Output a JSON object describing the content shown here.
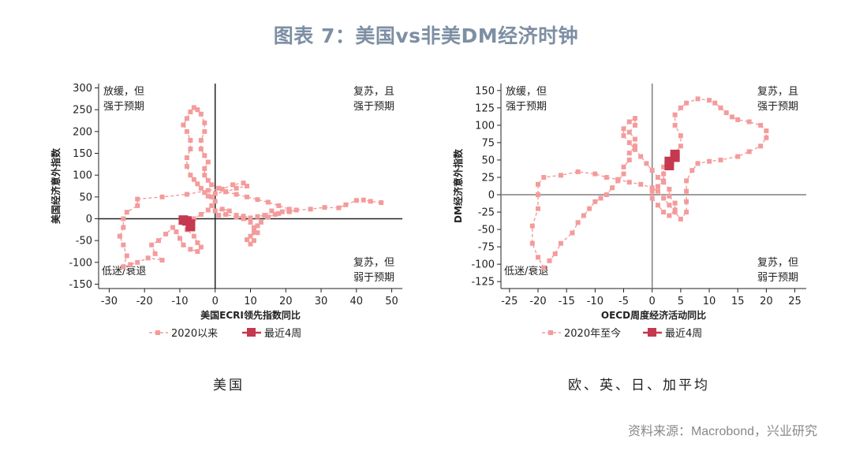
{
  "title": "图表 7：美国vs非美DM经济时钟",
  "source": "资料来源：Macrobond，兴业研究",
  "colors": {
    "history": "#f49b9b",
    "recent": "#c4394f",
    "axis": "#222222",
    "zero": "#7f7f7f",
    "title": "#7d8fa3"
  },
  "chart_data": [
    {
      "type": "scatter",
      "caption": "美国",
      "xlabel": "美国ECRI领先指数同比",
      "ylabel": "美国经济意外指数",
      "xlim": [
        -33,
        53
      ],
      "ylim": [
        -160,
        310
      ],
      "xticks": [
        -30,
        -20,
        -10,
        0,
        10,
        20,
        30,
        40,
        50
      ],
      "yticks": [
        -150,
        -100,
        -50,
        0,
        50,
        100,
        150,
        200,
        250,
        300
      ],
      "grid": false,
      "zero_line_color": "#222222",
      "quadrants": {
        "top_left": [
          "放缓，但",
          "强于预期"
        ],
        "top_right": [
          "复苏，且",
          "强于预期"
        ],
        "bottom_left": [
          "低迷/衰退"
        ],
        "bottom_right": [
          "复苏，但",
          "弱于预期"
        ]
      },
      "legend": {
        "placement": "bottom",
        "history": "2020以来",
        "recent": "最近4周"
      },
      "series": [
        {
          "name": "2020以来",
          "points": [
            [
              47,
              37
            ],
            [
              44,
              40
            ],
            [
              42,
              43
            ],
            [
              40,
              42
            ],
            [
              37,
              32
            ],
            [
              35,
              25
            ],
            [
              31,
              26
            ],
            [
              27,
              22
            ],
            [
              23,
              20
            ],
            [
              21,
              16
            ],
            [
              18,
              12
            ],
            [
              16,
              18
            ],
            [
              14,
              8
            ],
            [
              12,
              5
            ],
            [
              10,
              2
            ],
            [
              8,
              6
            ],
            [
              6,
              4
            ],
            [
              3,
              10
            ],
            [
              1,
              8
            ],
            [
              0,
              18
            ],
            [
              2,
              22
            ],
            [
              4,
              18
            ],
            [
              6,
              8
            ],
            [
              8,
              0
            ],
            [
              10,
              -8
            ],
            [
              11,
              -20
            ],
            [
              12,
              -32
            ],
            [
              10,
              -40
            ],
            [
              11,
              -50
            ],
            [
              10,
              -58
            ],
            [
              9,
              -48
            ],
            [
              11,
              -30
            ],
            [
              12,
              -16
            ],
            [
              13,
              -8
            ],
            [
              15,
              4
            ],
            [
              17,
              10
            ],
            [
              19,
              16
            ],
            [
              21,
              22
            ],
            [
              18,
              30
            ],
            [
              15,
              38
            ],
            [
              12,
              44
            ],
            [
              9,
              50
            ],
            [
              6,
              56
            ],
            [
              3,
              62
            ],
            [
              1,
              70
            ],
            [
              -1,
              78
            ],
            [
              -2,
              88
            ],
            [
              -3,
              100
            ],
            [
              -3,
              115
            ],
            [
              -2,
              130
            ],
            [
              -3,
              145
            ],
            [
              -4,
              160
            ],
            [
              -4,
              180
            ],
            [
              -3,
              200
            ],
            [
              -3,
              220
            ],
            [
              -4,
              240
            ],
            [
              -5,
              250
            ],
            [
              -6,
              255
            ],
            [
              -7,
              245
            ],
            [
              -8,
              230
            ],
            [
              -9,
              215
            ],
            [
              -8,
              200
            ],
            [
              -7,
              180
            ],
            [
              -7,
              160
            ],
            [
              -8,
              140
            ],
            [
              -8,
              120
            ],
            [
              -7,
              100
            ],
            [
              -6,
              90
            ],
            [
              -5,
              80
            ],
            [
              -4,
              70
            ],
            [
              -3,
              60
            ],
            [
              -1,
              50
            ],
            [
              0,
              40
            ],
            [
              -1,
              30
            ],
            [
              -2,
              20
            ],
            [
              -4,
              10
            ],
            [
              -6,
              0
            ],
            [
              -7,
              -10
            ],
            [
              -8,
              -25
            ],
            [
              -6,
              -40
            ],
            [
              -5,
              -55
            ],
            [
              -4,
              -65
            ],
            [
              -5,
              -75
            ],
            [
              -7,
              -70
            ],
            [
              -9,
              -60
            ],
            [
              -10,
              -45
            ],
            [
              -11,
              -30
            ],
            [
              -12,
              -20
            ],
            [
              -14,
              -35
            ],
            [
              -16,
              -50
            ],
            [
              -18,
              -60
            ],
            [
              -17,
              -80
            ],
            [
              -15,
              -95
            ],
            [
              -19,
              -90
            ],
            [
              -22,
              -100
            ],
            [
              -24,
              -105
            ],
            [
              -26,
              -110
            ],
            [
              -25,
              -85
            ],
            [
              -26,
              -60
            ],
            [
              -27,
              -40
            ],
            [
              -26,
              -20
            ],
            [
              -26,
              0
            ],
            [
              -25,
              15
            ],
            [
              -22,
              30
            ],
            [
              -22,
              45
            ],
            [
              -15,
              50
            ],
            [
              -8,
              56
            ],
            [
              -2,
              65
            ],
            [
              2,
              68
            ],
            [
              5,
              78
            ],
            [
              8,
              82
            ],
            [
              9,
              75
            ],
            [
              6,
              70
            ],
            [
              3,
              62
            ],
            [
              0,
              58
            ],
            [
              -2,
              52
            ]
          ]
        },
        {
          "name": "最近4周",
          "points": [
            [
              -9,
              -3
            ],
            [
              -8,
              -5
            ],
            [
              -7,
              -12
            ],
            [
              -7,
              -18
            ]
          ]
        }
      ]
    },
    {
      "type": "scatter",
      "caption": "欧、英、日、加平均",
      "xlabel": "OECD周度经济活动同比",
      "ylabel": "DM经济意外指数",
      "xlim": [
        -26.5,
        27
      ],
      "ylim": [
        -135,
        160
      ],
      "xticks": [
        -25,
        -20,
        -15,
        -10,
        -5,
        0,
        5,
        10,
        15,
        20,
        25
      ],
      "yticks": [
        -125,
        -100,
        -75,
        -50,
        -25,
        0,
        25,
        50,
        75,
        100,
        125,
        150
      ],
      "grid": false,
      "zero_line_color": "#7f7f7f",
      "quadrants": {
        "top_left": [
          "放缓，但",
          "强于预期"
        ],
        "top_right": [
          "复苏，且",
          "强于预期"
        ],
        "bottom_left": [
          "低迷/衰退"
        ],
        "bottom_right": [
          "复苏，但",
          "弱于预期"
        ]
      },
      "legend": {
        "placement": "bottom",
        "history": "2020年至今",
        "recent": "最近4周"
      },
      "series": [
        {
          "name": "2020年至今",
          "points": [
            [
              -19,
              -105
            ],
            [
              -20,
              -90
            ],
            [
              -21,
              -70
            ],
            [
              -21,
              -45
            ],
            [
              -20,
              -20
            ],
            [
              -20,
              0
            ],
            [
              -20,
              15
            ],
            [
              -19,
              25
            ],
            [
              -16,
              28
            ],
            [
              -13,
              33
            ],
            [
              -10,
              30
            ],
            [
              -8,
              25
            ],
            [
              -6,
              22
            ],
            [
              -4,
              18
            ],
            [
              -2,
              15
            ],
            [
              0,
              10
            ],
            [
              1,
              5
            ],
            [
              2,
              -5
            ],
            [
              3,
              -15
            ],
            [
              4,
              -25
            ],
            [
              5,
              -35
            ],
            [
              6,
              -25
            ],
            [
              6,
              -10
            ],
            [
              6,
              5
            ],
            [
              6,
              20
            ],
            [
              7,
              35
            ],
            [
              8,
              45
            ],
            [
              10,
              48
            ],
            [
              12,
              50
            ],
            [
              15,
              55
            ],
            [
              17,
              62
            ],
            [
              19,
              70
            ],
            [
              20,
              82
            ],
            [
              20,
              92
            ],
            [
              19,
              100
            ],
            [
              17,
              105
            ],
            [
              15,
              108
            ],
            [
              14,
              112
            ],
            [
              13,
              118
            ],
            [
              12,
              125
            ],
            [
              11,
              132
            ],
            [
              10,
              136
            ],
            [
              8,
              138
            ],
            [
              6,
              132
            ],
            [
              5,
              125
            ],
            [
              4,
              115
            ],
            [
              4,
              100
            ],
            [
              5,
              85
            ],
            [
              5,
              70
            ],
            [
              4,
              60
            ],
            [
              3,
              50
            ],
            [
              2,
              40
            ],
            [
              2,
              30
            ],
            [
              2,
              20
            ],
            [
              1,
              12
            ],
            [
              0,
              5
            ],
            [
              0,
              -5
            ],
            [
              1,
              -15
            ],
            [
              2,
              -25
            ],
            [
              3,
              -30
            ],
            [
              4,
              -22
            ],
            [
              4,
              -12
            ],
            [
              3,
              -2
            ],
            [
              3,
              8
            ],
            [
              2,
              18
            ],
            [
              1,
              25
            ],
            [
              0,
              35
            ],
            [
              -1,
              45
            ],
            [
              -2,
              55
            ],
            [
              -3,
              65
            ],
            [
              -4,
              75
            ],
            [
              -5,
              85
            ],
            [
              -5,
              95
            ],
            [
              -4,
              105
            ],
            [
              -3,
              110
            ],
            [
              -3,
              100
            ],
            [
              -4,
              90
            ],
            [
              -3,
              80
            ],
            [
              -3,
              70
            ],
            [
              -4,
              60
            ],
            [
              -4,
              50
            ],
            [
              -5,
              40
            ],
            [
              -5,
              30
            ],
            [
              -6,
              20
            ],
            [
              -7,
              10
            ],
            [
              -8,
              0
            ],
            [
              -9,
              -5
            ],
            [
              -10,
              -10
            ],
            [
              -11,
              -20
            ],
            [
              -12,
              -30
            ],
            [
              -13,
              -40
            ],
            [
              -14,
              -55
            ],
            [
              -16,
              -70
            ],
            [
              -17,
              -85
            ],
            [
              -18,
              -95
            ]
          ]
        },
        {
          "name": "最近4周",
          "points": [
            [
              3,
              42
            ],
            [
              3,
              48
            ],
            [
              4,
              54
            ],
            [
              4,
              58
            ]
          ]
        }
      ]
    }
  ]
}
